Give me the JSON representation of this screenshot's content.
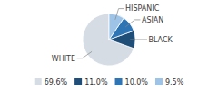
{
  "chart_data": {
    "type": "pie",
    "categories": [
      "WHITE",
      "BLACK",
      "ASIAN",
      "HISPANIC"
    ],
    "values": [
      69.6,
      11.0,
      10.0,
      9.5
    ],
    "value_labels": [
      "69.6%",
      "11.0%",
      "10.0%",
      "9.5%"
    ],
    "colors": [
      "#d6dce4",
      "#1f4e79",
      "#2e75b6",
      "#9dc3e6"
    ],
    "legend": "bottom"
  }
}
